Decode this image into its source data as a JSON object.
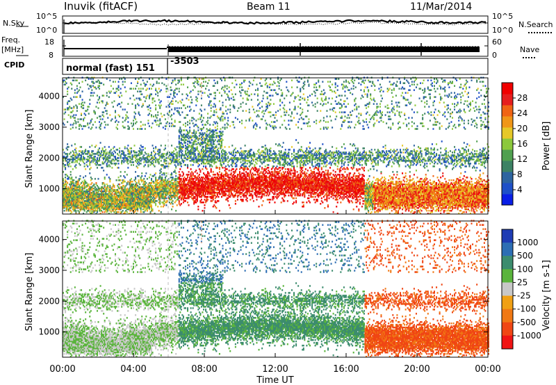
{
  "header": {
    "station": "Inuvik (fitACF)",
    "beam": "Beam 11",
    "date": "11/Mar/2014"
  },
  "top_panels": {
    "nsky_label": "N.Sky",
    "nsearch_label": "N.Search",
    "noise_tick_hi": "10^5",
    "noise_tick_lo": "10^0",
    "freq_label_line1": "Freq.",
    "freq_label_line2": "[MHz]",
    "freq_tick_hi": "18",
    "freq_tick_lo": "8",
    "nave_label": "Nave",
    "nave_tick_hi": "60",
    "nave_tick_lo": "0",
    "cpid_label": "CPID",
    "cpid_mode_text": "normal (fast) 151",
    "cpid_change_text": "-3503"
  },
  "chart_data": [
    {
      "type": "heatmap",
      "title": "",
      "parameter": "Power",
      "colorbar_label": "Power [dB]",
      "colorbar_ticks": [
        4,
        8,
        12,
        16,
        20,
        24,
        28
      ],
      "colorbar_range": [
        0,
        32
      ],
      "ylabel": "Slant Range [km]",
      "yticks": [
        1000,
        2000,
        3000,
        4000
      ],
      "ylim": [
        180,
        4600
      ],
      "xlabel": "",
      "xlim_hours": [
        0,
        24
      ],
      "colors": [
        "#0a1ee6",
        "#1e50c8",
        "#2d64a0",
        "#3c8264",
        "#50a050",
        "#8cc83c",
        "#e6c828",
        "#f09618",
        "#f06414",
        "#e61e1e",
        "#f00000"
      ]
    },
    {
      "type": "heatmap",
      "title": "",
      "parameter": "Velocity",
      "colorbar_label": "Velocity [m s-1]",
      "colorbar_ticks": [
        "1000",
        "500",
        "100",
        "25",
        "-25",
        "-100",
        "-500",
        "-1000"
      ],
      "ylabel": "Slant Range [km]",
      "yticks": [
        1000,
        2000,
        3000,
        4000
      ],
      "ylim": [
        180,
        4600
      ],
      "xlabel": "Time UT",
      "xticks": [
        "00:00",
        "04:00",
        "08:00",
        "12:00",
        "16:00",
        "20:00",
        "00:00"
      ],
      "xlim_hours": [
        0,
        24
      ],
      "colors": [
        "#1e3cb4",
        "#2d6eb4",
        "#3c8c6e",
        "#5ab43c",
        "#c8c8c8",
        "#f0a014",
        "#f07814",
        "#f04614",
        "#f01414"
      ]
    }
  ],
  "footer": {
    "xaxis_title": "Time UT"
  }
}
